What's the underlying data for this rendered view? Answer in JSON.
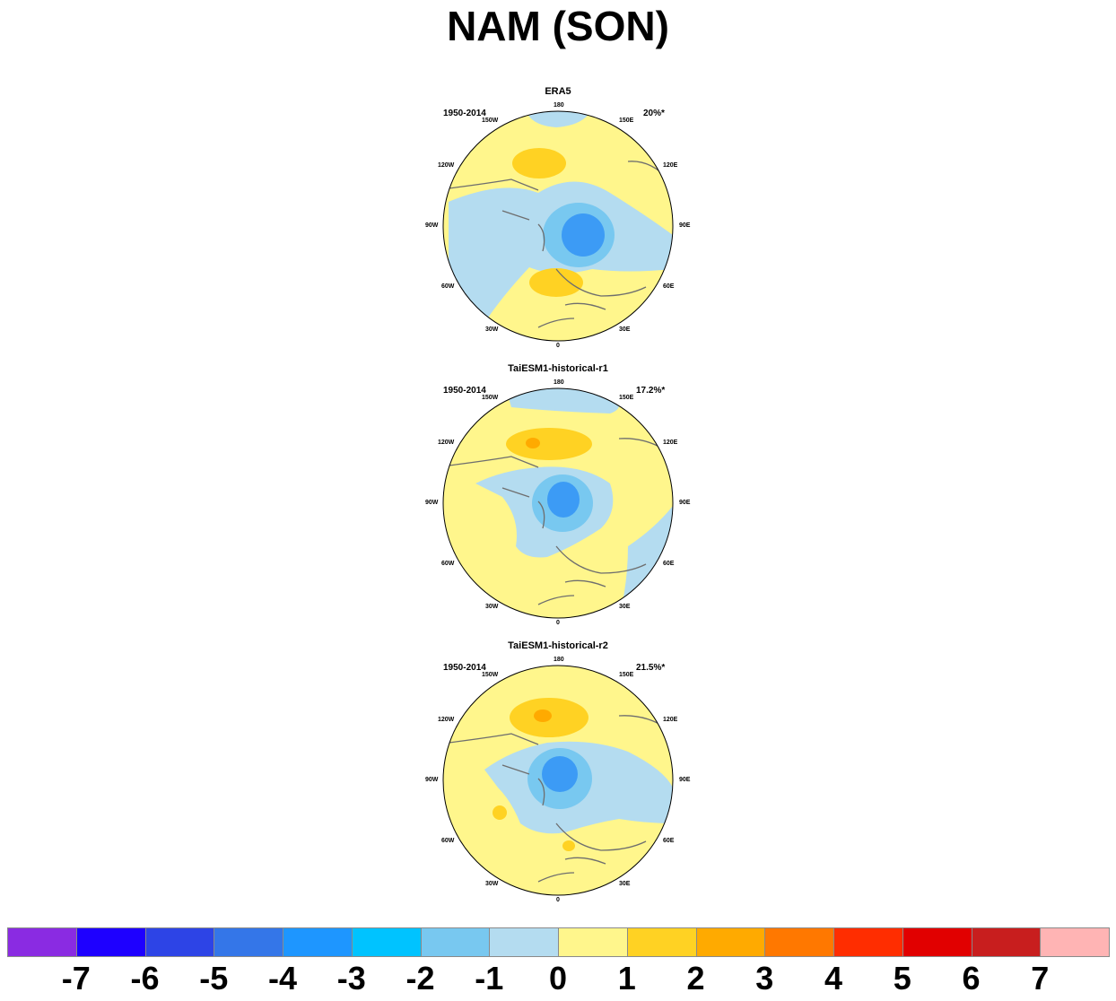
{
  "title": "NAM (SON)",
  "panels": [
    {
      "title": "ERA5",
      "period": "1950-2014",
      "variance": "20%*"
    },
    {
      "title": "TaiESM1-historical-r1",
      "period": "1950-2014",
      "variance": "17.2%*"
    },
    {
      "title": "TaiESM1-historical-r2",
      "period": "1950-2014",
      "variance": "21.5%*"
    }
  ],
  "longitude_labels": [
    "180",
    "150W",
    "150E",
    "120W",
    "120E",
    "90W",
    "90E",
    "60W",
    "60E",
    "30W",
    "30E",
    "0"
  ],
  "colorbar": {
    "labels": [
      "-7",
      "-6",
      "-5",
      "-4",
      "-3",
      "-2",
      "-1",
      "0",
      "1",
      "2",
      "3",
      "4",
      "5",
      "6",
      "7"
    ],
    "colors": [
      "#8a2be2",
      "#1e00ff",
      "#2d44e6",
      "#3476e8",
      "#1e96ff",
      "#00c3ff",
      "#78c8f0",
      "#b4dcf0",
      "#fff68c",
      "#ffd223",
      "#ffaa00",
      "#ff7800",
      "#ff2d00",
      "#e10000",
      "#c81e1e",
      "#ffb4b4"
    ]
  }
}
